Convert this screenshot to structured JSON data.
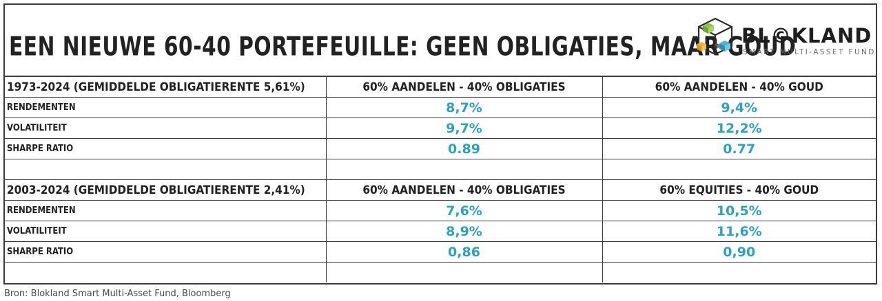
{
  "header": {
    "title": "EEN NIEUWE 60-40 PORTEFEUILLE: GEEN OBLIGATIES, MAAR GOUD",
    "logo": {
      "icon": "cube-stack-icon",
      "brand": "BL©KLAND",
      "tagline": "SMART MULTI-ASSET FUND"
    }
  },
  "sections": [
    {
      "period": "1973-2024 (GEMIDDELDE OBLIGATIERENTE 5,61%)",
      "col1": "60% AANDELEN - 40% OBLIGATIES",
      "col2": "60% AANDELEN - 40% GOUD",
      "rows": [
        {
          "label": "RENDEMENTEN",
          "v1": "8,7%",
          "v2": "9,4%"
        },
        {
          "label": "VOLATILITEIT",
          "v1": "9,7%",
          "v2": "12,2%"
        },
        {
          "label": "SHARPE RATIO",
          "v1": "0.89",
          "v2": "0.77"
        }
      ]
    },
    {
      "period": "2003-2024 (GEMIDDELDE OBLIGATIERENTE 2,41%)",
      "col1": "60% AANDELEN - 40% OBLIGATIES",
      "col2": "60% EQUITIES - 40% GOUD",
      "rows": [
        {
          "label": "RENDEMENTEN",
          "v1": "7,6%",
          "v2": "10,5%"
        },
        {
          "label": "VOLATILITEIT",
          "v1": "8,9%",
          "v2": "11,6%"
        },
        {
          "label": "SHARPE RATIO",
          "v1": "0,86",
          "v2": "0,90"
        }
      ]
    }
  ],
  "colors": {
    "value_accent": "#2aa3be",
    "border": "#3a3a3a"
  },
  "footer": {
    "source": "Bron: Blokland Smart Multi-Asset Fund, Bloomberg"
  }
}
